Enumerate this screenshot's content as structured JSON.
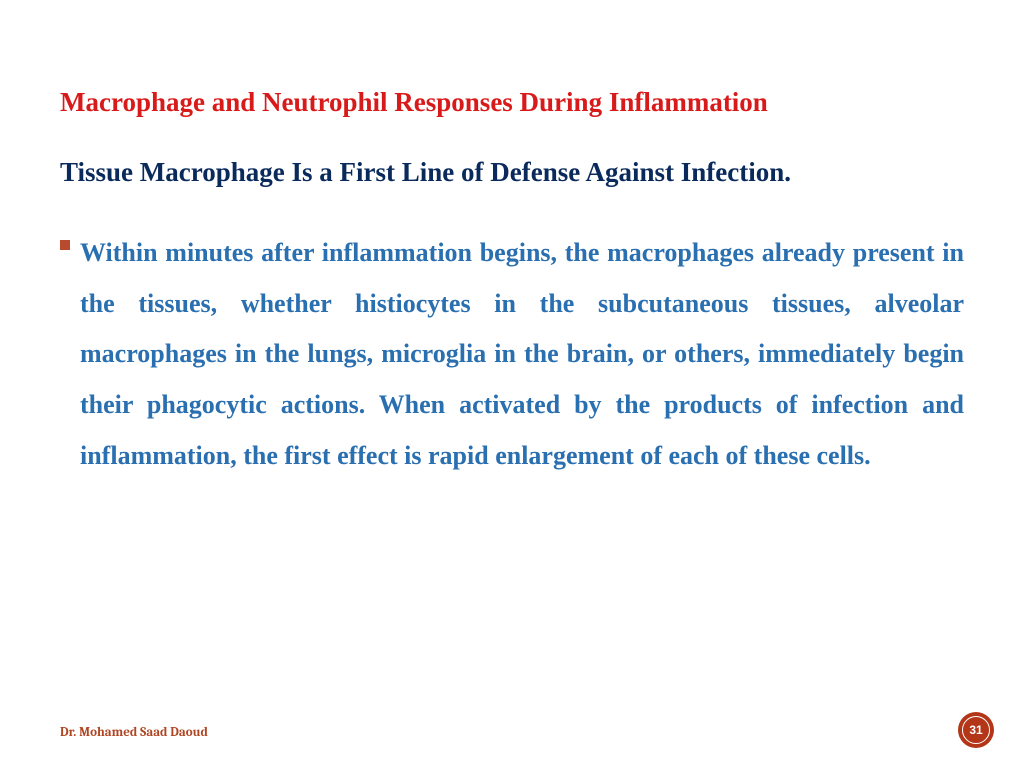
{
  "colors": {
    "title": "#d91a1a",
    "subtitle": "#0a2a5c",
    "body": "#2a6fb0",
    "bullet": "#b84b2e",
    "author": "#b04522",
    "badge_outer": "#b43618",
    "badge_border": "#ffffff",
    "badge_inner": "#b43618"
  },
  "type": "presentation-slide",
  "title": "Macrophage and Neutrophil Responses During Inflammation",
  "subtitle": "Tissue Macrophage Is a First Line of Defense Against Infection.",
  "bullet_glyph": "▪",
  "body": "Within minutes after inflammation begins, the macrophages already present in the tissues, whether histiocytes in the subcutaneous tissues, alveolar macrophages in the lungs, microglia in the brain, or others, immediately begin their phagocytic actions. When activated by the products of infection and inflammation, the first effect is rapid enlargement of each of these cells.",
  "footer": {
    "author": "Dr. Mohamed Saad Daoud",
    "page_number": "31"
  }
}
